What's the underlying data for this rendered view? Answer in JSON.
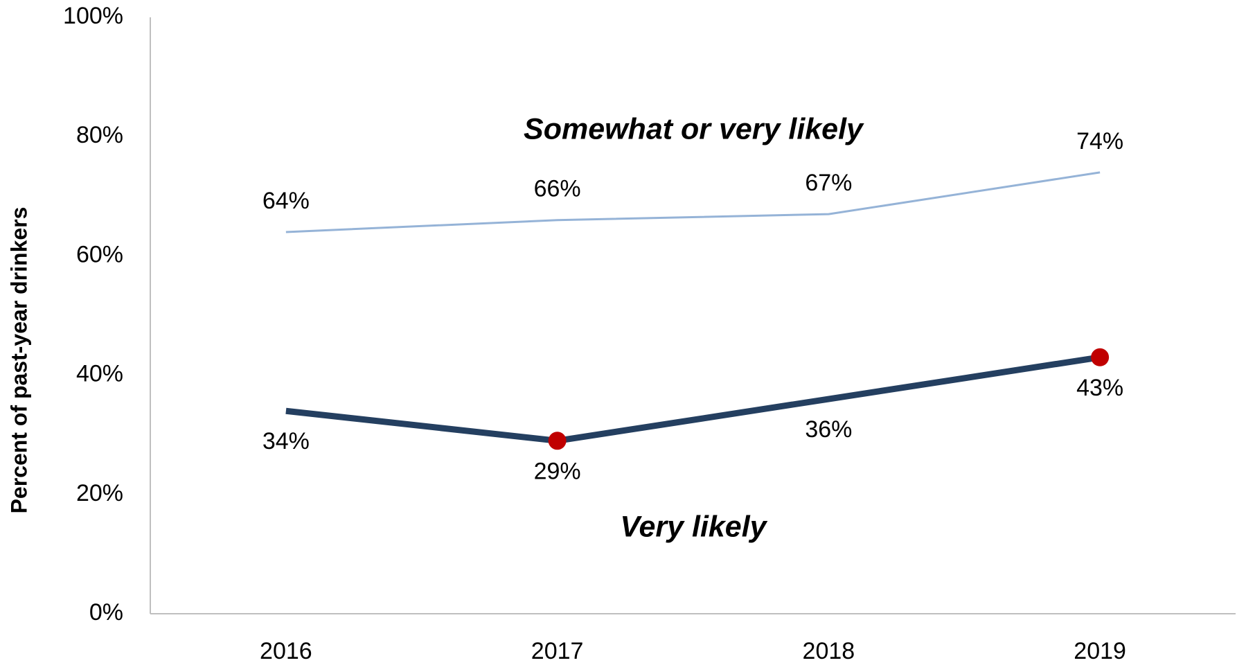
{
  "chart_data": {
    "type": "line",
    "y_label": "Percent of past-year drinkers",
    "categories": [
      "2016",
      "2017",
      "2018",
      "2019"
    ],
    "series": [
      {
        "name": "Somewhat or very likely",
        "color": "#95b3d7",
        "values": [
          64,
          66,
          67,
          74
        ],
        "value_labels": [
          "64%",
          "66%",
          "67%",
          "74%"
        ]
      },
      {
        "name": "Very likely",
        "color": "#243f60",
        "values": [
          34,
          29,
          36,
          43
        ],
        "value_labels": [
          "34%",
          "29%",
          "36%",
          "43%"
        ],
        "highlight": [
          1,
          3
        ],
        "highlight_color": "#c00000"
      }
    ],
    "ylim": [
      0,
      100
    ],
    "yticks": [
      {
        "value": 0,
        "label": "0%"
      },
      {
        "value": 20,
        "label": "20%"
      },
      {
        "value": 40,
        "label": "40%"
      },
      {
        "value": 60,
        "label": "60%"
      },
      {
        "value": 80,
        "label": "80%"
      },
      {
        "value": 100,
        "label": "100%"
      }
    ],
    "grid": false
  }
}
